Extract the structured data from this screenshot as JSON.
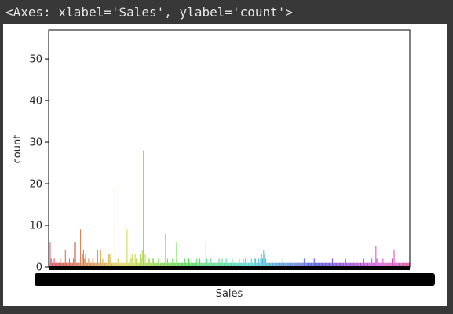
{
  "output_repr": "<Axes: xlabel='Sales', ylabel='count'>",
  "chart_data": {
    "type": "bar",
    "xlabel": "Sales",
    "ylabel": "count",
    "ylim": [
      0,
      57
    ],
    "yticks": [
      0,
      10,
      20,
      30,
      40,
      50
    ],
    "grid": false,
    "legend": "none",
    "colors": {
      "start": "#e8828e",
      "end": "#e06ab4",
      "axis": "#000000",
      "ticklabel_blob": "#000000"
    },
    "tick_labels_overlapping": true,
    "values": [
      1,
      6,
      2,
      1,
      1,
      2,
      1,
      1,
      1,
      1,
      1,
      2,
      1,
      1,
      1,
      1,
      4,
      1,
      1,
      1,
      2,
      1,
      1,
      1,
      2,
      6,
      6,
      1,
      1,
      1,
      1,
      9,
      1,
      3,
      4,
      2,
      3,
      1,
      1,
      2,
      1,
      1,
      1,
      2,
      1,
      1,
      1,
      1,
      4,
      1,
      1,
      4,
      1,
      2,
      1,
      1,
      1,
      1,
      1,
      3,
      3,
      2,
      1,
      1,
      1,
      19,
      1,
      1,
      2,
      1,
      1,
      1,
      1,
      1,
      1,
      1,
      3,
      9,
      1,
      1,
      3,
      2,
      3,
      1,
      1,
      3,
      2,
      1,
      1,
      1,
      3,
      2,
      4,
      28,
      1,
      3,
      1,
      1,
      2,
      2,
      1,
      1,
      2,
      2,
      1,
      1,
      1,
      1,
      2,
      1,
      1,
      1,
      1,
      1,
      1,
      8,
      1,
      2,
      1,
      1,
      1,
      1,
      2,
      1,
      1,
      1,
      6,
      1,
      1,
      1,
      1,
      1,
      1,
      1,
      2,
      1,
      1,
      1,
      2,
      1,
      1,
      2,
      1,
      1,
      1,
      1,
      2,
      1,
      2,
      2,
      1,
      1,
      2,
      1,
      1,
      6,
      2,
      1,
      1,
      5,
      2,
      1,
      1,
      1,
      1,
      1,
      3,
      1,
      2,
      1,
      1,
      2,
      1,
      1,
      1,
      2,
      1,
      1,
      1,
      1,
      1,
      2,
      1,
      1,
      1,
      1,
      1,
      1,
      2,
      1,
      1,
      1,
      2,
      1,
      2,
      1,
      1,
      1,
      1,
      1,
      2,
      1,
      1,
      2,
      2,
      1,
      1,
      2,
      1,
      2,
      3,
      2,
      4,
      3,
      2,
      1,
      1,
      1,
      1,
      1,
      1,
      1,
      1,
      1,
      1,
      1,
      1,
      1,
      1,
      1,
      1,
      2,
      1,
      1,
      1,
      1,
      1,
      1,
      1,
      1,
      1,
      1,
      1,
      1,
      1,
      1,
      1,
      1,
      1,
      1,
      1,
      1,
      2,
      1,
      1,
      1,
      1,
      1,
      1,
      1,
      1,
      1,
      2,
      1,
      1,
      1,
      1,
      1,
      1,
      1,
      1,
      1,
      1,
      1,
      1,
      1,
      1,
      1,
      1,
      1,
      2,
      1,
      1,
      1,
      1,
      1,
      1,
      1,
      1,
      1,
      1,
      1,
      1,
      2,
      1,
      1,
      1,
      1,
      1,
      1,
      1,
      1,
      1,
      1,
      1,
      1,
      1,
      1,
      1,
      1,
      1,
      2,
      1,
      1,
      1,
      1,
      1,
      1,
      1,
      2,
      1,
      1,
      1,
      5,
      2,
      1,
      1,
      1,
      1,
      1,
      2,
      1,
      1,
      1,
      1,
      1,
      2,
      1,
      1,
      2,
      1,
      4,
      1,
      1,
      1,
      1,
      1,
      1,
      1,
      1,
      1,
      1,
      1,
      1,
      1,
      1,
      1
    ]
  }
}
